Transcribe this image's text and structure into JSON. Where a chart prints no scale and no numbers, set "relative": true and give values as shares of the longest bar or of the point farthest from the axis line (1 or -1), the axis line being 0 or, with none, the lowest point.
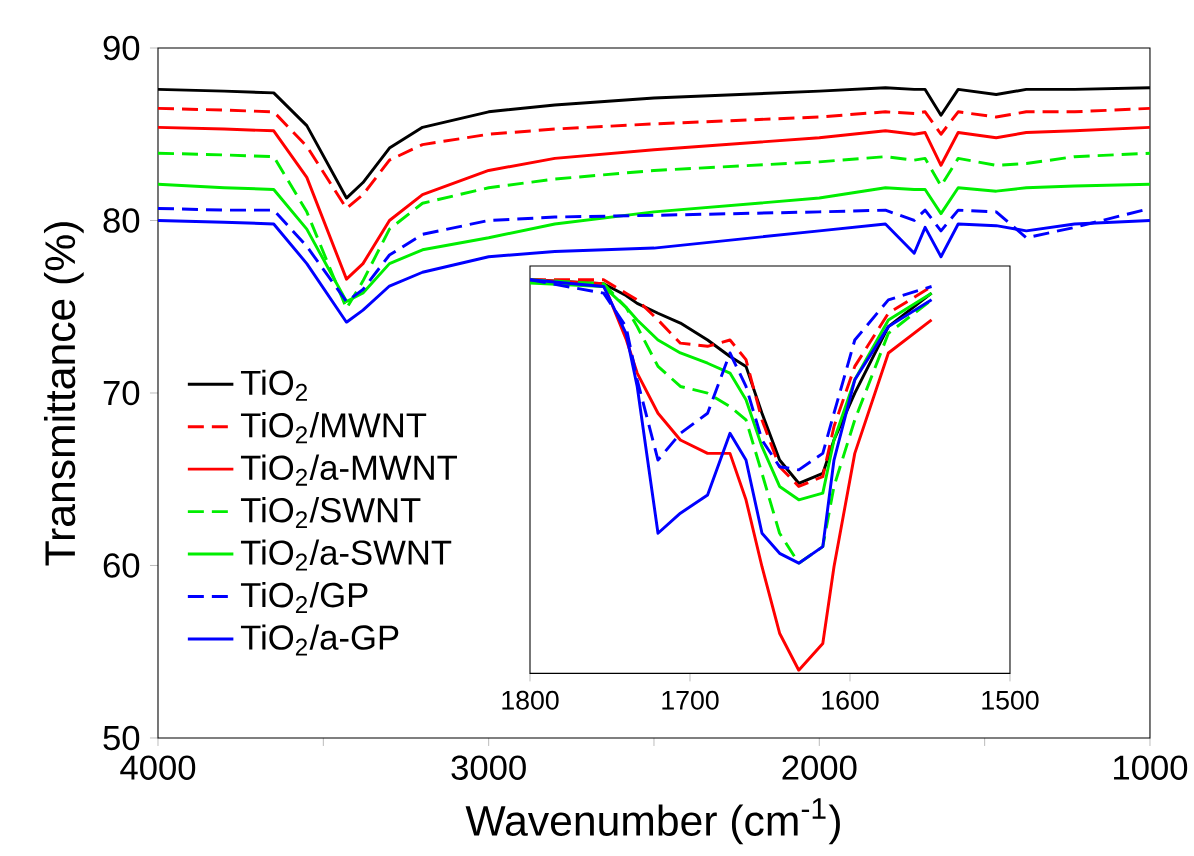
{
  "chart_data": [
    {
      "type": "line",
      "xlabel": "Wavenumber (cm$^{-1}$)",
      "ylabel": "Transmittance (%)",
      "xlim": [
        4000,
        1000
      ],
      "ylim": [
        50,
        90
      ],
      "xticks": [
        4000,
        {
          "value": 3500,
          "label": null
        },
        3000,
        {
          "value": 2500,
          "label": null
        },
        2000,
        {
          "value": 1500,
          "label": null
        },
        1000
      ],
      "yticks": [
        50,
        60,
        70,
        80,
        90
      ],
      "legend": "left",
      "x": [
        4000,
        3800,
        3650,
        3550,
        3430,
        3380,
        3300,
        3200,
        3000,
        2800,
        2500,
        2000,
        1800,
        1713,
        1680,
        1632,
        1580,
        1465,
        1374,
        1228,
        1000
      ],
      "series": [
        {
          "name": "TiO$_{2}$",
          "color": "#000000",
          "line_style": "solid",
          "values": [
            87.6,
            87.5,
            87.4,
            85.5,
            81.3,
            82.2,
            84.2,
            85.4,
            86.3,
            86.7,
            87.1,
            87.5,
            87.7,
            87.6,
            87.6,
            86.1,
            87.6,
            87.3,
            87.6,
            87.6,
            87.7
          ]
        },
        {
          "name": "TiO$_{2}$/MWNT",
          "color": "#ff0000",
          "line_style": "dashed",
          "values": [
            86.5,
            86.4,
            86.3,
            84.3,
            80.7,
            81.5,
            83.5,
            84.4,
            85.0,
            85.3,
            85.6,
            86.0,
            86.3,
            86.2,
            86.3,
            85.0,
            86.3,
            86.0,
            86.3,
            86.3,
            86.5
          ]
        },
        {
          "name": "TiO$_{2}$/a-MWNT",
          "color": "#ff0000",
          "line_style": "solid",
          "values": [
            85.4,
            85.3,
            85.2,
            82.5,
            76.6,
            77.5,
            80.0,
            81.5,
            82.9,
            83.6,
            84.1,
            84.8,
            85.2,
            85.0,
            85.1,
            83.2,
            85.1,
            84.8,
            85.1,
            85.2,
            85.4
          ]
        },
        {
          "name": "TiO$_{2}$/SWNT",
          "color": "#00ee00",
          "line_style": "dashed",
          "values": [
            83.9,
            83.8,
            83.7,
            80.5,
            74.9,
            76.5,
            79.5,
            81.0,
            81.9,
            82.4,
            82.9,
            83.4,
            83.7,
            83.5,
            83.6,
            82.0,
            83.6,
            83.2,
            83.3,
            83.7,
            83.9
          ]
        },
        {
          "name": "TiO$_{2}$/a-SWNT",
          "color": "#00ee00",
          "line_style": "solid",
          "values": [
            82.1,
            81.9,
            81.8,
            79.5,
            75.3,
            75.8,
            77.5,
            78.3,
            79.0,
            79.8,
            80.5,
            81.3,
            81.9,
            81.8,
            81.8,
            80.4,
            81.9,
            81.7,
            81.9,
            82.0,
            82.1
          ]
        },
        {
          "name": "TiO$_{2}$/GP",
          "color": "#0000ff",
          "line_style": "dashed",
          "values": [
            80.7,
            80.6,
            80.6,
            78.5,
            75.3,
            76.0,
            78.0,
            79.2,
            80.0,
            80.2,
            80.3,
            80.5,
            80.6,
            80.0,
            80.6,
            79.4,
            80.6,
            80.5,
            79.0,
            79.6,
            80.7
          ]
        },
        {
          "name": "TiO$_{2}$/a-GP",
          "color": "#0000ff",
          "line_style": "solid",
          "values": [
            80.0,
            79.9,
            79.8,
            77.5,
            74.1,
            74.8,
            76.2,
            77.0,
            77.9,
            78.2,
            78.4,
            79.4,
            79.8,
            78.1,
            79.6,
            77.9,
            79.8,
            79.7,
            79.4,
            79.8,
            80.0
          ]
        }
      ]
    },
    {
      "type": "line",
      "relative": true,
      "tick_labels": "x",
      "xlim": [
        1800,
        1500
      ],
      "xticks": [
        1800,
        1700,
        1600,
        1500
      ],
      "x": [
        1800,
        1754,
        1740,
        1733,
        1720,
        1706,
        1689,
        1675,
        1665,
        1655,
        1644,
        1632,
        1617,
        1610,
        1597,
        1576,
        1549
      ],
      "series": [
        {
          "color": "#000000",
          "line_style": "solid",
          "values": [
            1.0,
            0.99,
            0.96,
            0.94,
            0.915,
            0.89,
            0.847,
            0.805,
            0.78,
            0.661,
            0.542,
            0.483,
            0.508,
            0.593,
            0.712,
            0.881,
            0.966
          ]
        },
        {
          "color": "#ff0000",
          "line_style": "dashed",
          "values": [
            1,
            1,
            0.966,
            0.949,
            0.898,
            0.839,
            0.831,
            0.847,
            0.797,
            0.644,
            0.525,
            0.475,
            0.5,
            0.627,
            0.78,
            0.915,
            0.983
          ]
        },
        {
          "color": "#ff0000",
          "line_style": "solid",
          "values": [
            1,
            0.99,
            0.85,
            0.763,
            0.661,
            0.593,
            0.559,
            0.559,
            0.441,
            0.271,
            0.102,
            0.008,
            0.076,
            0.271,
            0.559,
            0.814,
            0.898
          ]
        },
        {
          "color": "#00ee00",
          "line_style": "dashed",
          "values": [
            1,
            0.99,
            0.93,
            0.881,
            0.78,
            0.729,
            0.712,
            0.678,
            0.644,
            0.508,
            0.356,
            0.28,
            0.322,
            0.475,
            0.644,
            0.864,
            0.949
          ]
        },
        {
          "color": "#00ee00",
          "line_style": "solid",
          "values": [
            0.992,
            0.983,
            0.93,
            0.898,
            0.847,
            0.814,
            0.788,
            0.763,
            0.695,
            0.576,
            0.475,
            0.441,
            0.458,
            0.593,
            0.746,
            0.898,
            0.966
          ]
        },
        {
          "color": "#0000ff",
          "line_style": "dashed",
          "values": [
            1,
            0.966,
            0.881,
            0.746,
            0.542,
            0.61,
            0.661,
            0.814,
            0.729,
            0.593,
            0.525,
            0.517,
            0.559,
            0.661,
            0.847,
            0.949,
            0.983
          ]
        },
        {
          "color": "#0000ff",
          "line_style": "solid",
          "values": [
            1,
            0.983,
            0.864,
            0.729,
            0.356,
            0.407,
            0.453,
            0.61,
            0.542,
            0.356,
            0.305,
            0.28,
            0.322,
            0.542,
            0.746,
            0.881,
            0.949
          ]
        }
      ]
    }
  ]
}
